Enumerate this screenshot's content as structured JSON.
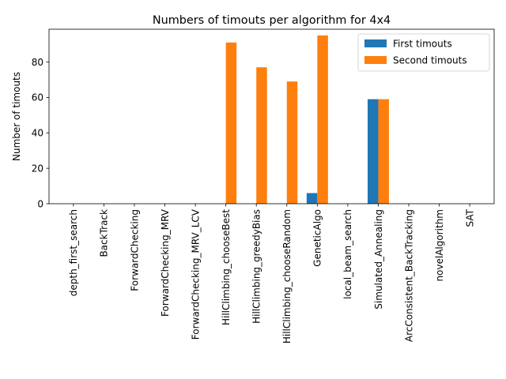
{
  "chart_data": {
    "type": "bar",
    "title": "Numbers of timouts per algorithm for 4x4",
    "xlabel": "",
    "ylabel": "Number of timouts",
    "ylim": [
      0,
      98.5
    ],
    "yticks": [
      0,
      20,
      40,
      60,
      80
    ],
    "categories": [
      "depth_first_search",
      "BackTrack",
      "ForwardChecking",
      "ForwardChecking_MRV",
      "ForwardChecking_MRV_LCV",
      "HillClimbing_chooseBest",
      "HillClimbing_greedyBias",
      "HillClimbing_chooseRandom",
      "GeneticAlgo",
      "local_beam_search",
      "Simulated_Annealing",
      "ArcConsistent_BackTracking",
      "novelAlgorithm",
      "SAT"
    ],
    "series": [
      {
        "name": "First timouts",
        "color": "#1f77b4",
        "values": [
          0,
          0,
          0,
          0,
          0,
          0,
          0,
          0,
          6,
          0,
          59,
          0,
          0,
          0
        ]
      },
      {
        "name": "Second timouts",
        "color": "#ff7f0e",
        "values": [
          0,
          0,
          0,
          0,
          0,
          91,
          77,
          69,
          95,
          0,
          59,
          0,
          0,
          0
        ]
      }
    ],
    "legend": "top-right",
    "grid": false
  }
}
